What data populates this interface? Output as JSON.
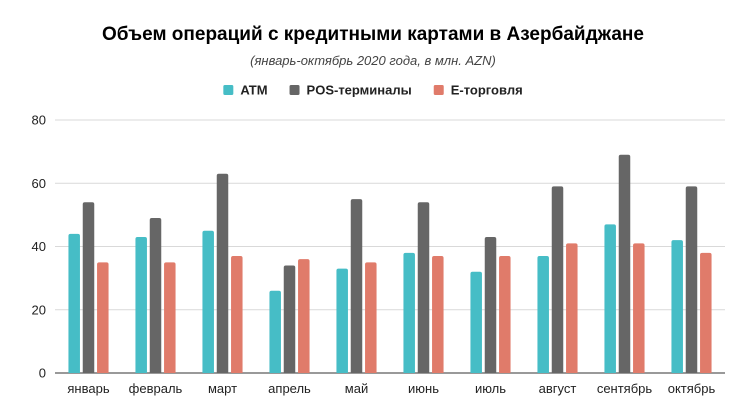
{
  "chart_data": {
    "type": "bar",
    "title": "Объем операций с кредитными картами в Азербайджане",
    "subtitle": "(январь-октябрь 2020 года, в млн. AZN)",
    "xlabel": "",
    "ylabel": "",
    "ylim": [
      0,
      80
    ],
    "yticks": [
      0,
      20,
      40,
      60,
      80
    ],
    "grid": true,
    "legend_position": "top",
    "categories": [
      "январь",
      "февраль",
      "март",
      "апрель",
      "май",
      "июнь",
      "июль",
      "август",
      "сентябрь",
      "октябрь"
    ],
    "series": [
      {
        "name": "ATM",
        "color": "#46bdc6",
        "values": [
          44,
          43,
          45,
          26,
          33,
          38,
          32,
          37,
          47,
          42
        ]
      },
      {
        "name": "POS-терминалы",
        "color": "#666666",
        "values": [
          54,
          49,
          63,
          34,
          55,
          54,
          43,
          59,
          69,
          59
        ]
      },
      {
        "name": "E-торговля",
        "color": "#e07b6a",
        "values": [
          35,
          35,
          37,
          36,
          35,
          37,
          37,
          41,
          41,
          38
        ]
      }
    ]
  }
}
